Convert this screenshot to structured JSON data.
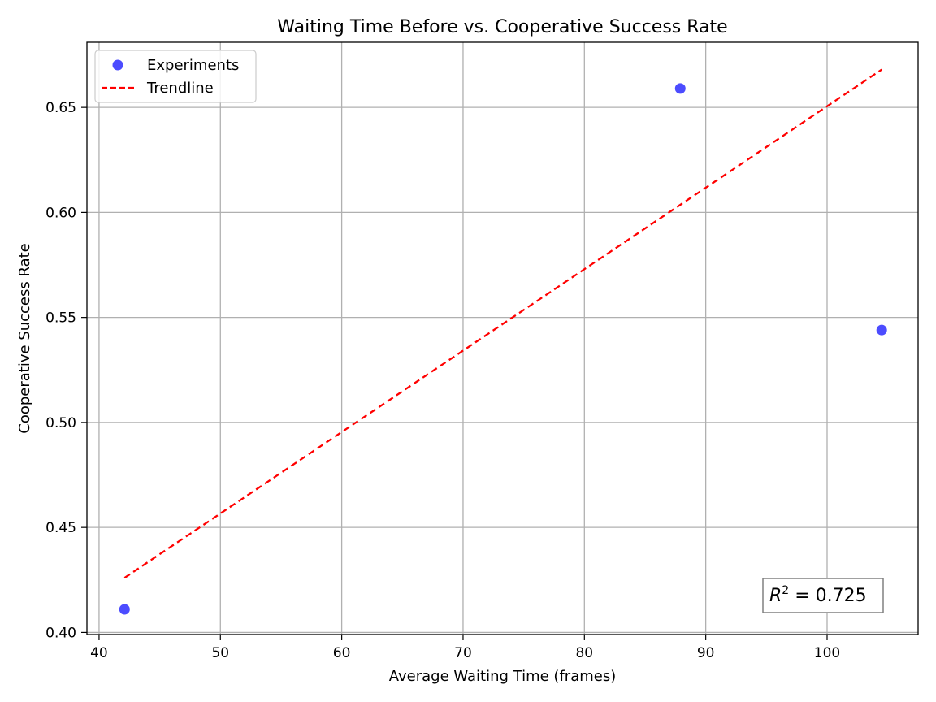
{
  "chart_data": {
    "type": "scatter",
    "title": "Waiting Time Before vs. Cooperative Success Rate",
    "xlabel": "Average Waiting Time (frames)",
    "ylabel": "Cooperative Success Rate",
    "xlim": [
      39,
      107.5
    ],
    "ylim": [
      0.399,
      0.681
    ],
    "xticks": [
      40,
      50,
      60,
      70,
      80,
      90,
      100
    ],
    "yticks": [
      0.4,
      0.45,
      0.5,
      0.55,
      0.6,
      0.65
    ],
    "xtick_labels": [
      "40",
      "50",
      "60",
      "70",
      "80",
      "90",
      "100"
    ],
    "ytick_labels": [
      "0.40",
      "0.45",
      "0.50",
      "0.55",
      "0.60",
      "0.65"
    ],
    "grid": true,
    "legend_position": "top-left",
    "series": [
      {
        "name": "Experiments",
        "kind": "scatter",
        "color": "#0000ff",
        "x": [
          42.1,
          87.9,
          104.5
        ],
        "y": [
          0.411,
          0.659,
          0.544
        ]
      },
      {
        "name": "Trendline",
        "kind": "line",
        "style": "dashed",
        "color": "#ff0000",
        "x": [
          42.1,
          104.5
        ],
        "y": [
          0.426,
          0.668
        ]
      }
    ],
    "annotation": {
      "r2_symbol": "R",
      "r2_exponent": "2",
      "r2_text": " = 0.725",
      "position": "bottom-right"
    }
  }
}
